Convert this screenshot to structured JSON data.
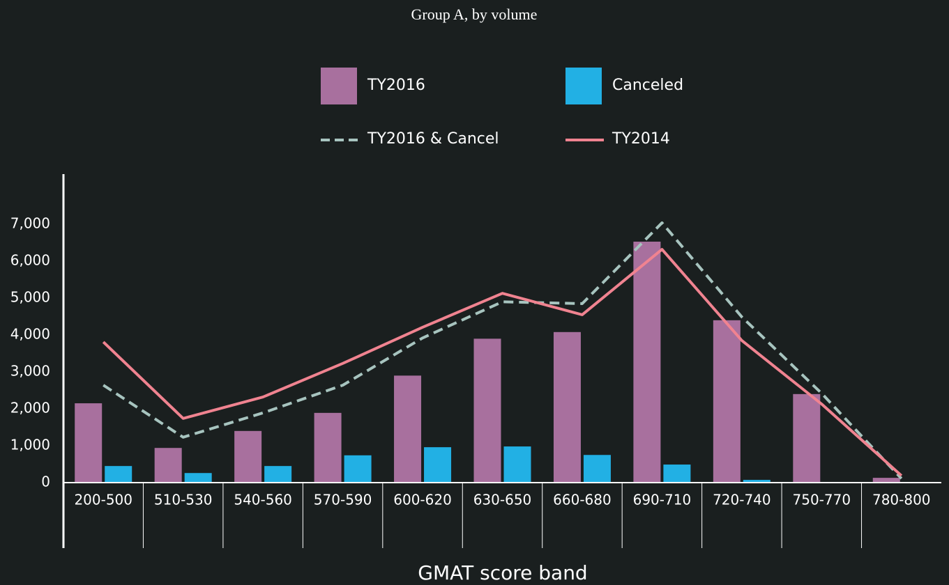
{
  "chart_data": {
    "type": "bar",
    "title": "Group A, by volume",
    "x_label": "GMAT score band",
    "categories": [
      "200-500",
      "510-530",
      "540-560",
      "570-590",
      "600-620",
      "630-650",
      "660-680",
      "690-710",
      "720-740",
      "750-770",
      "780-800"
    ],
    "series": [
      {
        "name": "TY2016",
        "kind": "bar",
        "color": "#a8709e",
        "values": [
          2150,
          940,
          1400,
          1890,
          2900,
          3900,
          4080,
          6530,
          4400,
          2400,
          130
        ]
      },
      {
        "name": "Canceled",
        "kind": "bar",
        "color": "#22b0e4",
        "values": [
          450,
          260,
          450,
          740,
          960,
          980,
          750,
          490,
          75,
          0,
          0
        ]
      },
      {
        "name": "TY2016 & Cancel",
        "kind": "line",
        "dashed": true,
        "color": "#a7c4bf",
        "values": [
          2640,
          1230,
          1890,
          2640,
          3920,
          4900,
          4850,
          7040,
          4490,
          2420,
          110
        ]
      },
      {
        "name": "TY2014",
        "kind": "line",
        "dashed": false,
        "color": "#f08390",
        "values": [
          3810,
          1740,
          2320,
          3230,
          4210,
          5130,
          4550,
          6320,
          3850,
          2130,
          190
        ]
      }
    ],
    "ylim": [
      0,
      8360
    ],
    "yticks": [
      0,
      {
        "value": 1000,
        "label": "1,000"
      },
      {
        "value": 2000,
        "label": "2,000"
      },
      {
        "value": 3000,
        "label": "3,000"
      },
      {
        "value": 4000,
        "label": "4,000"
      },
      {
        "value": 5000,
        "label": "5,000"
      },
      {
        "value": 6000,
        "label": "6,000"
      },
      {
        "value": 7000,
        "label": "7,000"
      }
    ],
    "grid": false,
    "legend": "top"
  }
}
